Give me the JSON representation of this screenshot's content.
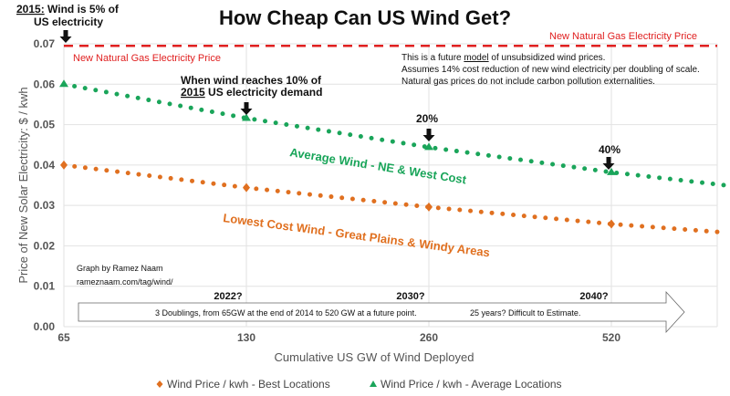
{
  "chart_data": {
    "type": "line",
    "title": "How Cheap Can US Wind Get?",
    "xlabel": "Cumulative US GW of Wind Deployed",
    "ylabel": "Price of New Solar Electricity: $ / kwh",
    "x_scale": "log2",
    "xlim": [
      65,
      800
    ],
    "ylim": [
      0,
      0.07
    ],
    "x_ticks": [
      "65",
      "130",
      "260",
      "520"
    ],
    "y_ticks": [
      "0.00",
      "0.01",
      "0.02",
      "0.03",
      "0.04",
      "0.05",
      "0.06",
      "0.07"
    ],
    "grid": true,
    "legend_position": "bottom",
    "series": [
      {
        "name": "Wind Price / kwh - Best Locations",
        "color": "#e07020",
        "marker": "diamond",
        "x": [
          65,
          130,
          260,
          520,
          800
        ],
        "values": [
          0.04,
          0.0344,
          0.0296,
          0.0254,
          0.0233
        ]
      },
      {
        "name": "Wind Price / kwh - Average Locations",
        "color": "#1aa55a",
        "marker": "triangle",
        "x": [
          65,
          130,
          260,
          520,
          800
        ],
        "values": [
          0.06,
          0.0516,
          0.0444,
          0.0382,
          0.035
        ]
      }
    ],
    "reference_line": {
      "label": "New Natural Gas Electricity Price",
      "value": 0.0695,
      "color": "#e02020"
    },
    "annotations": {
      "start": {
        "prefix": "2015:",
        "text": " Wind is 5% of",
        "line2": "US electricity"
      },
      "ten": {
        "line1": "When wind reaches 10% of",
        "year": "2015",
        "line2rest": " US electricity demand"
      },
      "twenty": "20%",
      "forty": "40%",
      "avg_label": "Average Wind - NE & West Cost",
      "low_label": "Lowest Cost Wind - Great Plains & Windy Areas",
      "gas_label_left": "New Natural Gas Electricity Price",
      "gas_label_right": "New Natural Gas Electricity Price",
      "note1_pre": "This is a future ",
      "note1_u": "model",
      "note1_post": " of unsubsidized wind prices.",
      "note2": "Assumes 14% cost reduction of new wind electricity per doubling of scale.",
      "note3": "Natural gas prices do not include carbon pollution externalities.",
      "credit1": "Graph by Ramez Naam",
      "credit2": "rameznaam.com/tag/wind/",
      "years": [
        "2022?",
        "2030?",
        "2040?"
      ],
      "arrow_text1": "3 Doublings, from 65GW at the end of 2014 to 520 GW at a future point.",
      "arrow_text2": "25 years? Difficult to Estimate."
    }
  }
}
